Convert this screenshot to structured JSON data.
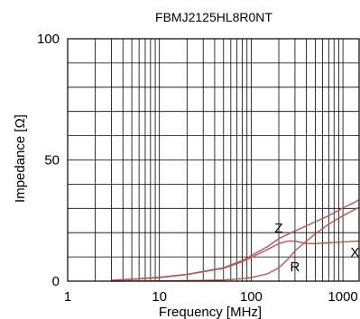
{
  "chart_data": {
    "type": "line",
    "title": "FBMJ2125HL8R0NT",
    "xlabel": "Frequency [MHz]",
    "ylabel": "Impedance [Ω]",
    "x_scale": "log",
    "xlim": [
      1,
      1500
    ],
    "ylim": [
      0,
      100
    ],
    "x_ticks": [
      1,
      10,
      100,
      1000
    ],
    "x_tick_labels": [
      "1",
      "10",
      "100",
      "1000"
    ],
    "y_ticks": [
      0,
      50,
      100
    ],
    "y_tick_labels": [
      "0",
      "50",
      "100"
    ],
    "grid": true,
    "line_color": "#c0504d",
    "series": [
      {
        "name": "Z",
        "x": [
          3,
          5,
          10,
          20,
          50,
          80,
          100,
          150,
          200,
          300,
          500,
          700,
          1000,
          1500
        ],
        "values": [
          0.4,
          0.8,
          1.6,
          2.8,
          5.5,
          8.5,
          10.5,
          14.2,
          17.5,
          20.7,
          24.5,
          27.0,
          30.2,
          33.5
        ]
      },
      {
        "name": "X",
        "x": [
          3,
          5,
          10,
          20,
          50,
          80,
          100,
          150,
          200,
          250,
          300,
          400,
          500,
          700,
          1000,
          1500
        ],
        "values": [
          0.3,
          0.7,
          1.5,
          2.7,
          5.3,
          8.0,
          9.8,
          13.0,
          15.5,
          16.5,
          16.5,
          15.5,
          15.5,
          15.8,
          16.2,
          16.5
        ]
      },
      {
        "name": "R",
        "x": [
          3,
          10,
          30,
          50,
          80,
          100,
          150,
          200,
          250,
          300,
          400,
          500,
          700,
          1000,
          1500
        ],
        "values": [
          0.0,
          0.1,
          0.3,
          0.5,
          1.0,
          1.5,
          3.0,
          5.5,
          9.0,
          12.5,
          16.5,
          19.5,
          23.5,
          27.0,
          30.5
        ]
      }
    ],
    "annotations": [
      {
        "text": "Z",
        "x": 200,
        "y": 20
      },
      {
        "text": "R",
        "x": 300,
        "y": 4
      },
      {
        "text": "X",
        "x": 1350,
        "y": 10
      }
    ]
  }
}
